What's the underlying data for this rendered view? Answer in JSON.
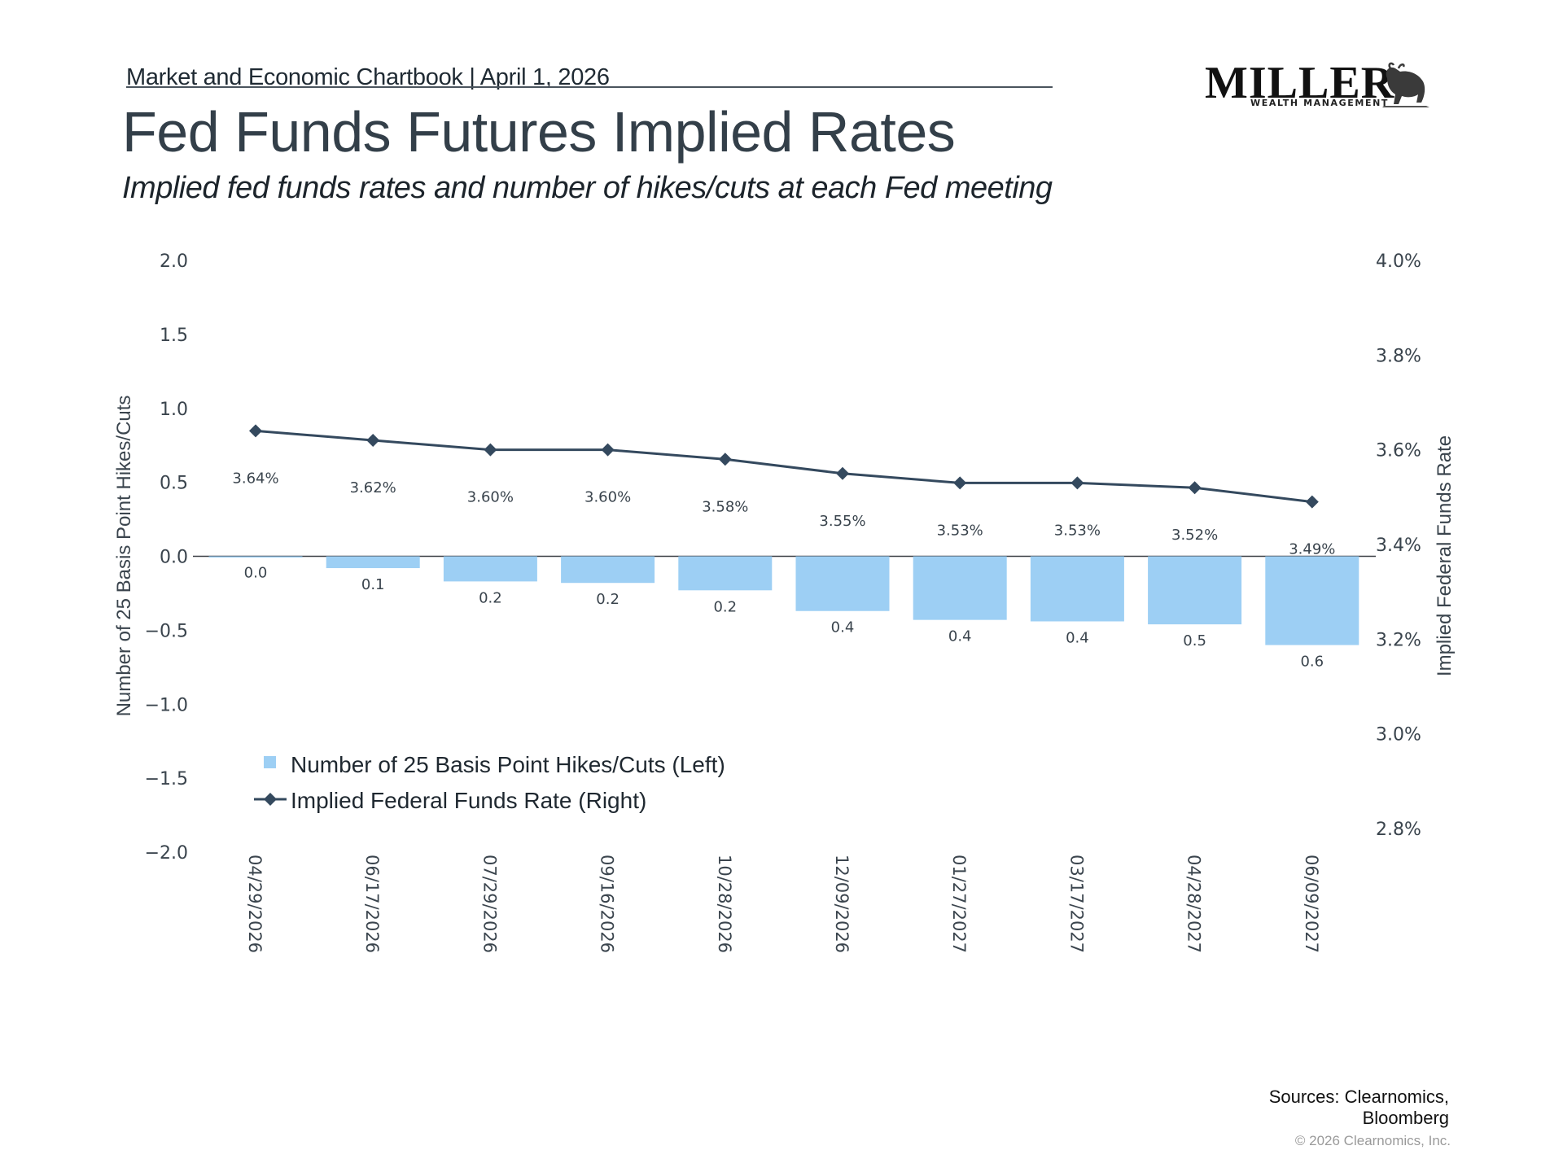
{
  "header": {
    "chartbook": "Market and Economic Chartbook | April 1, 2026",
    "title": "Fed Funds Futures Implied Rates",
    "subtitle": "Implied fed funds rates and number of hikes/cuts at each Fed meeting"
  },
  "logo": {
    "word": "MILLER",
    "sub": "WEALTH MANAGEMENT",
    "icon": "bull-icon"
  },
  "footer": {
    "sources_line1": "Sources: Clearnomics,",
    "sources_line2": "Bloomberg",
    "copyright": "© 2026 Clearnomics, Inc."
  },
  "colors": {
    "bar": "#9dcff4",
    "line": "#34495e",
    "text": "#3a444d"
  },
  "chart_data": {
    "type": "bar+line",
    "title": "Fed Funds Futures Implied Rates",
    "categories": [
      "04/29/2026",
      "06/17/2026",
      "07/29/2026",
      "09/16/2026",
      "10/28/2026",
      "12/09/2026",
      "01/27/2027",
      "03/17/2027",
      "04/28/2027",
      "06/09/2027"
    ],
    "series": [
      {
        "name": "Number of 25 Basis Point Hikes/Cuts (Left)",
        "type": "bar",
        "axis": "left",
        "values": [
          0.0,
          -0.08,
          -0.17,
          -0.18,
          -0.23,
          -0.37,
          -0.43,
          -0.44,
          -0.46,
          -0.6
        ],
        "labels": [
          "0.0",
          "0.1",
          "0.2",
          "0.2",
          "0.2",
          "0.4",
          "0.4",
          "0.4",
          "0.5",
          "0.6"
        ]
      },
      {
        "name": "Implied Federal Funds Rate (Right)",
        "type": "line",
        "axis": "right",
        "marker": "diamond",
        "values": [
          3.64,
          3.62,
          3.6,
          3.6,
          3.58,
          3.55,
          3.53,
          3.53,
          3.52,
          3.49
        ],
        "labels": [
          "3.64%",
          "3.62%",
          "3.60%",
          "3.60%",
          "3.58%",
          "3.55%",
          "3.53%",
          "3.53%",
          "3.52%",
          "3.49%"
        ]
      }
    ],
    "left_axis": {
      "label": "Number of 25 Basis Point Hikes/Cuts",
      "range": [
        -2.0,
        2.0
      ],
      "ticks": [
        "2.0",
        "1.5",
        "1.0",
        "0.5",
        "0.0",
        "−0.5",
        "−1.0",
        "−1.5",
        "−2.0"
      ],
      "tick_values": [
        2.0,
        1.5,
        1.0,
        0.5,
        0.0,
        -0.5,
        -1.0,
        -1.5,
        -2.0
      ]
    },
    "right_axis": {
      "label": "Implied Federal Funds Rate",
      "range": [
        2.8,
        4.0
      ],
      "ticks": [
        "4.0%",
        "3.8%",
        "3.6%",
        "3.4%",
        "3.2%",
        "3.0%",
        "2.8%"
      ],
      "tick_values": [
        4.0,
        3.8,
        3.6,
        3.4,
        3.2,
        3.0,
        2.8
      ]
    },
    "legend": {
      "position": "bottom-left",
      "items": [
        "Number of 25 Basis Point Hikes/Cuts (Left)",
        "Implied Federal Funds Rate (Right)"
      ]
    },
    "grid": false
  }
}
